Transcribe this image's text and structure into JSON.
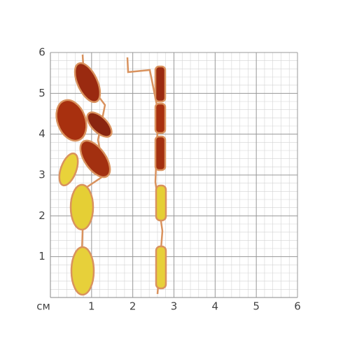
{
  "scale": {
    "unit": "см",
    "xticks": [
      1,
      2,
      3,
      4,
      5,
      6
    ],
    "yticks": [
      1,
      2,
      3,
      4,
      5,
      6
    ]
  }
}
